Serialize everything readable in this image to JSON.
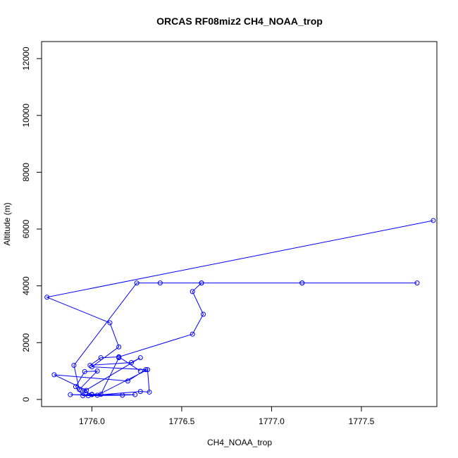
{
  "chart_data": {
    "type": "line",
    "title": "ORCAS RF08miz2 CH4_NOAA_trop",
    "xlabel": "CH4_NOAA_trop",
    "ylabel": "Altitude (m)",
    "xlim": [
      1775.72,
      1777.92
    ],
    "ylim": [
      -250,
      12600
    ],
    "xticks": [
      1776.0,
      1776.5,
      1777.0,
      1777.5
    ],
    "xtick_labels": [
      "1776.0",
      "1776.5",
      "1777.0",
      "1777.5"
    ],
    "yticks": [
      0,
      2000,
      4000,
      6000,
      8000,
      10000,
      12000
    ],
    "ytick_labels": [
      "0",
      "2000",
      "4000",
      "6000",
      "8000",
      "10000",
      "12000"
    ],
    "grid": false,
    "legend": "none",
    "color": "#0000ff",
    "series": [
      {
        "x": [
          1777.9,
          1775.75,
          1776.1,
          1776.15,
          1776.0,
          1776.3,
          1776.2,
          1775.79,
          1775.97,
          1775.98,
          1776.27,
          1776.32,
          1776.31,
          1776.03,
          1775.88,
          1776.0,
          1776.24,
          1776.17,
          1775.95,
          1775.91,
          1775.96,
          1776.03,
          1775.93,
          1775.9,
          1776.25,
          1776.38,
          1776.61,
          1777.17,
          1777.81,
          1777.17,
          1776.61,
          1776.56,
          1776.62,
          1776.56,
          1776.15,
          1776.27,
          1776.15,
          1776.05,
          1775.99,
          1776.22,
          1776.27,
          1775.96,
          1775.95,
          1776.0,
          1776.05,
          1776.15
        ],
        "y": [
          6300,
          3600,
          2700,
          1850,
          1150,
          1050,
          650,
          870,
          320,
          130,
          280,
          260,
          1050,
          150,
          170,
          170,
          170,
          150,
          130,
          450,
          980,
          1000,
          350,
          1200,
          4100,
          4100,
          4100,
          4100,
          4100,
          4100,
          4100,
          3800,
          3000,
          2300,
          1500,
          1000,
          1500,
          1470,
          1200,
          1300,
          1470,
          300,
          300,
          180,
          180,
          1470
        ]
      }
    ]
  }
}
